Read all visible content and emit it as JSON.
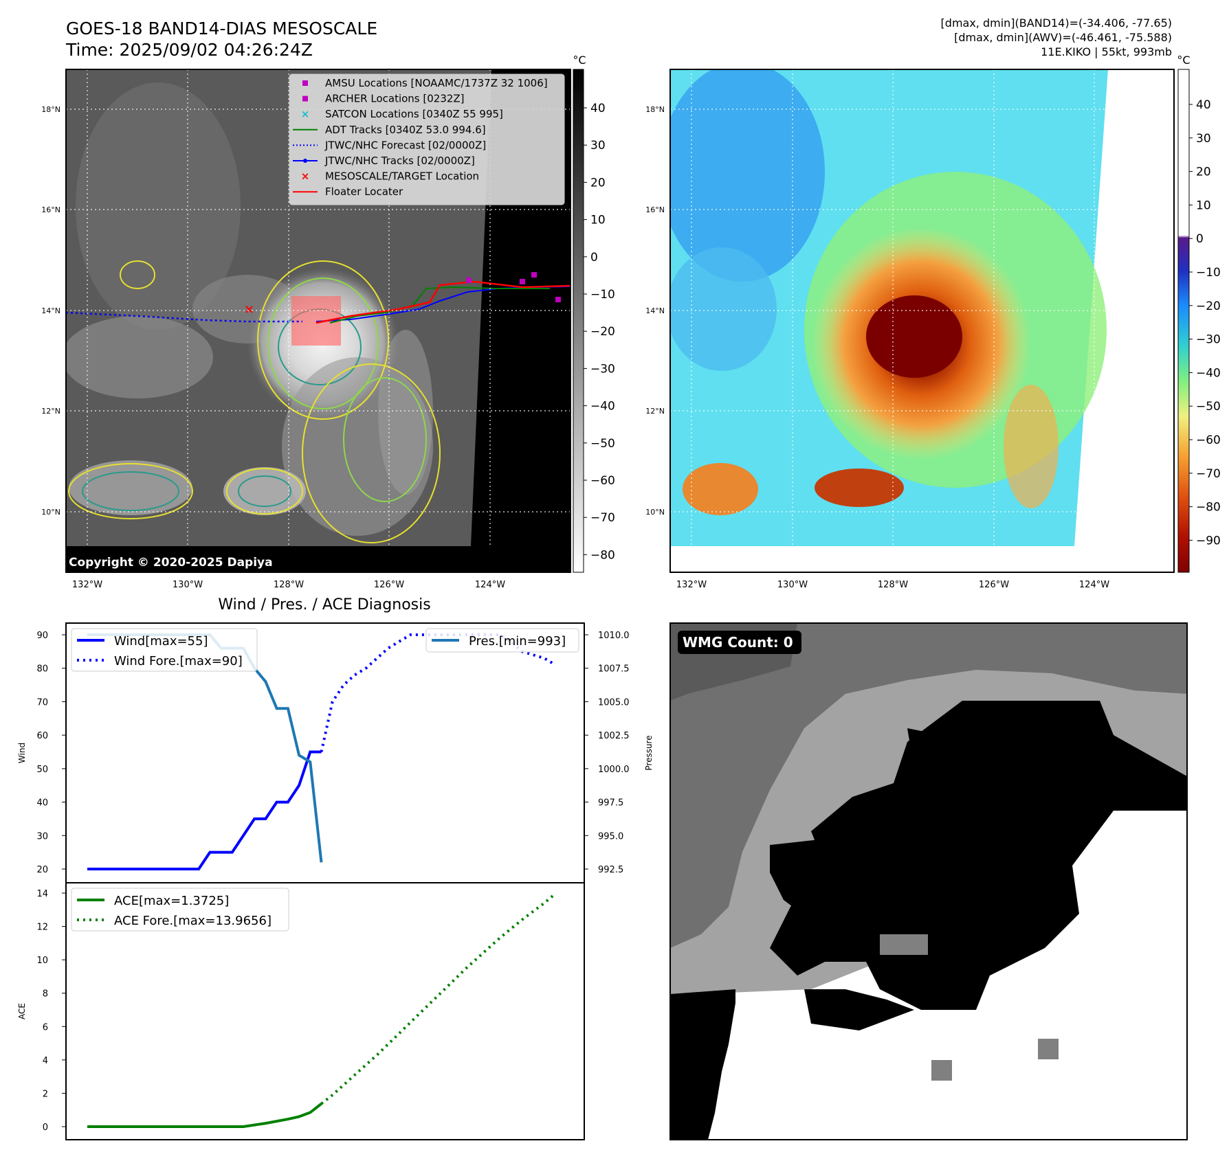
{
  "header": {
    "title_line1": "GOES-18 BAND14-DIAS MESOSCALE",
    "title_line2": "Time: 2025/09/02 04:26:24Z",
    "info_line1": "[dmax, dmin](BAND14)=(-34.406, -77.65)",
    "info_line2": "[dmax, dmin](AWV)=(-46.461, -75.588)",
    "info_line3": "11E.KIKO | 55kt, 993mb"
  },
  "map_axes": {
    "lon_ticks": [
      "132°W",
      "130°W",
      "128°W",
      "126°W",
      "124°W"
    ],
    "lat_ticks": [
      "18°N",
      "16°N",
      "14°N",
      "12°N",
      "10°N"
    ]
  },
  "ir_panel": {
    "copyright": "Copyright © 2020-2025 Dapiya",
    "colorbar_unit": "°C",
    "colorbar_ticks": [
      "40",
      "30",
      "20",
      "10",
      "0",
      "−10",
      "−20",
      "−30",
      "−40",
      "−50",
      "−60",
      "−70",
      "−80"
    ],
    "legend": [
      {
        "label": "AMSU Locations [NOAAMC/1737Z 32 1006]",
        "color": "#bf00bf",
        "marker": "square"
      },
      {
        "label": "ARCHER Locations [0232Z]",
        "color": "#bf00bf",
        "marker": "square"
      },
      {
        "label": "SATCON Locations [0340Z 55 995]",
        "color": "#17becf",
        "marker": "x"
      },
      {
        "label": "ADT Tracks [0340Z 53.0 994.6]",
        "color": "#008000",
        "marker": "line"
      },
      {
        "label": "JTWC/NHC Forecast [02/0000Z]",
        "color": "#0000ff",
        "marker": "dotted"
      },
      {
        "label": "JTWC/NHC Tracks [02/0000Z]",
        "color": "#0000ff",
        "marker": "line-dot"
      },
      {
        "label": "MESOSCALE/TARGET Location",
        "color": "#ff0000",
        "marker": "x"
      },
      {
        "label": "Floater Locater",
        "color": "#ff0000",
        "marker": "line"
      }
    ]
  },
  "awv_panel": {
    "colorbar_unit": "°C",
    "colorbar_ticks": [
      "40",
      "30",
      "20",
      "10",
      "0",
      "−10",
      "−20",
      "−30",
      "−40",
      "−50",
      "−60",
      "−70",
      "−80",
      "−90"
    ]
  },
  "wmg_panel": {
    "label": "WMG Count: 0"
  },
  "chart_data": [
    {
      "type": "line",
      "title": "Wind / Pres. / ACE Diagnosis",
      "ylabel": "Wind",
      "ylabel_right": "Pressure",
      "ylim": [
        20,
        90
      ],
      "ylim_right": [
        992.5,
        1010.0
      ],
      "yticks": [
        "90",
        "80",
        "70",
        "60",
        "50",
        "40",
        "30",
        "20"
      ],
      "yticks_right": [
        "1010.0",
        "1007.5",
        "1005.0",
        "1002.5",
        "1000.0",
        "997.5",
        "995.0",
        "992.5"
      ],
      "legend_left": [
        "Wind[max=55]",
        "Wind Fore.[max=90]"
      ],
      "legend_right": [
        "Pres.[min=993]"
      ],
      "x": [
        0,
        1,
        2,
        3,
        4,
        5,
        6,
        7,
        8,
        9,
        10,
        11,
        12,
        13,
        14,
        15,
        16,
        17,
        18,
        19,
        20,
        21,
        22,
        23,
        24,
        25,
        26,
        27,
        28,
        29,
        30,
        31,
        32,
        33,
        34,
        35,
        36,
        37,
        38,
        39,
        40,
        41,
        42
      ],
      "series": [
        {
          "name": "Wind[max=55]",
          "style": "solid",
          "color": "#0000ff",
          "x": [
            0,
            2,
            4,
            6,
            8,
            10,
            11,
            12,
            13,
            14,
            15,
            16,
            17,
            18,
            19,
            20,
            21
          ],
          "values": [
            20,
            20,
            20,
            20,
            20,
            20,
            25,
            25,
            25,
            30,
            35,
            35,
            40,
            40,
            45,
            55,
            55
          ]
        },
        {
          "name": "Wind Fore.[max=90]",
          "style": "dotted",
          "color": "#0000ff",
          "x": [
            21,
            22,
            23,
            24,
            25,
            26,
            27,
            28,
            29,
            30,
            31,
            32,
            33,
            34,
            35,
            36,
            37,
            38,
            39,
            40,
            41,
            42
          ],
          "values": [
            55,
            70,
            75,
            78,
            80,
            83,
            86,
            88,
            90,
            90,
            90,
            90,
            90,
            90,
            90,
            90,
            90,
            88,
            85,
            84,
            83,
            81
          ]
        },
        {
          "name": "Pres.[min=993]",
          "style": "solid",
          "color": "#1f77b4",
          "x": [
            0,
            1,
            2,
            3,
            4,
            5,
            6,
            7,
            8,
            9,
            10,
            11,
            12,
            13,
            14,
            15,
            16,
            17,
            18,
            19,
            20,
            21
          ],
          "values": [
            1010,
            1010,
            1010,
            1010,
            1010,
            1010,
            1010,
            1010,
            1010,
            1010,
            1010,
            1010,
            1009,
            1009,
            1009,
            1007.5,
            1006.5,
            1004.5,
            1004.5,
            1001,
            1000.5,
            993
          ]
        }
      ]
    },
    {
      "type": "line",
      "ylabel": "ACE",
      "ylim": [
        0,
        14
      ],
      "yticks": [
        "14",
        "12",
        "10",
        "8",
        "6",
        "4",
        "2",
        "0"
      ],
      "legend": [
        "ACE[max=1.3725]",
        "ACE Fore.[max=13.9656]"
      ],
      "series": [
        {
          "name": "ACE[max=1.3725]",
          "style": "solid",
          "color": "#008000",
          "x": [
            0,
            4,
            8,
            12,
            14,
            16,
            18,
            19,
            20,
            21
          ],
          "values": [
            0,
            0,
            0,
            0,
            0,
            0.2,
            0.45,
            0.6,
            0.85,
            1.3725
          ]
        },
        {
          "name": "ACE Fore.[max=13.9656]",
          "style": "dotted",
          "color": "#008000",
          "x": [
            21,
            22,
            23,
            24,
            25,
            26,
            27,
            28,
            29,
            30,
            31,
            32,
            33,
            34,
            35,
            36,
            37,
            38,
            39,
            40,
            41,
            42
          ],
          "values": [
            1.3725,
            1.9,
            2.5,
            3.1,
            3.7,
            4.3,
            4.95,
            5.6,
            6.25,
            6.9,
            7.55,
            8.2,
            8.85,
            9.5,
            10.1,
            10.7,
            11.3,
            11.85,
            12.4,
            12.9,
            13.4,
            13.9656
          ]
        }
      ]
    }
  ]
}
